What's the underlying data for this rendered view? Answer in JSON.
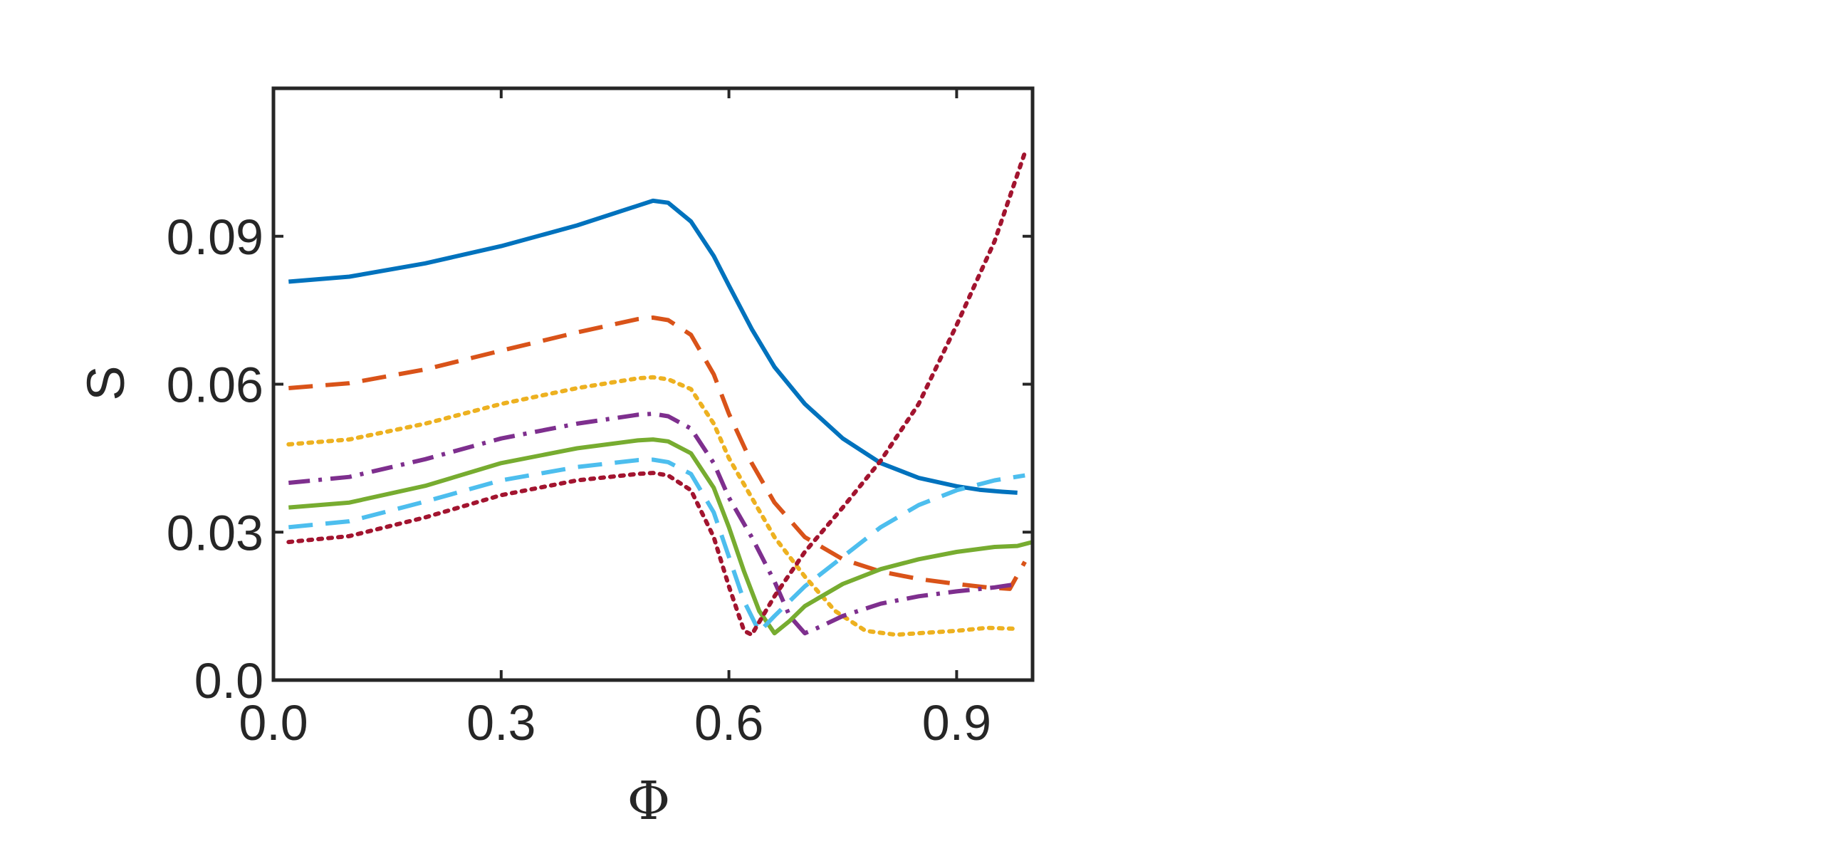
{
  "chart_data": {
    "type": "line",
    "title": "",
    "xlabel": "Φ",
    "ylabel": "S",
    "xlim": [
      0,
      1.0
    ],
    "ylim": [
      0,
      0.12
    ],
    "xticks": [
      0.0,
      0.3,
      0.6,
      0.9
    ],
    "xtick_labels": [
      "0.0",
      "0.3",
      "0.6",
      "0.9"
    ],
    "yticks": [
      0.0,
      0.03,
      0.06,
      0.09
    ],
    "ytick_labels": [
      "0.0",
      "0.03",
      "0.06",
      "0.09"
    ],
    "grid": false,
    "legend": "none",
    "series": [
      {
        "color": "#0072BD",
        "dash": "solid",
        "x": [
          0.02,
          0.1,
          0.2,
          0.3,
          0.4,
          0.48,
          0.5,
          0.52,
          0.55,
          0.58,
          0.6,
          0.63,
          0.66,
          0.7,
          0.75,
          0.8,
          0.85,
          0.9,
          0.93,
          0.96,
          0.98
        ],
        "y": [
          0.0808,
          0.0818,
          0.0845,
          0.088,
          0.0922,
          0.0962,
          0.0972,
          0.0968,
          0.093,
          0.086,
          0.08,
          0.0712,
          0.0635,
          0.056,
          0.049,
          0.044,
          0.041,
          0.0393,
          0.0386,
          0.0382,
          0.038
        ]
      },
      {
        "color": "#D95319",
        "dash": "dashed",
        "x": [
          0.02,
          0.1,
          0.2,
          0.3,
          0.4,
          0.48,
          0.5,
          0.52,
          0.55,
          0.58,
          0.6,
          0.63,
          0.66,
          0.7,
          0.75,
          0.8,
          0.85,
          0.9,
          0.94,
          0.97,
          0.99
        ],
        "y": [
          0.0592,
          0.0602,
          0.063,
          0.0668,
          0.0705,
          0.0732,
          0.0735,
          0.073,
          0.07,
          0.062,
          0.054,
          0.044,
          0.036,
          0.029,
          0.0245,
          0.022,
          0.0205,
          0.0195,
          0.0188,
          0.0185,
          0.024
        ]
      },
      {
        "color": "#EDB120",
        "dash": "dotted",
        "x": [
          0.02,
          0.1,
          0.2,
          0.3,
          0.4,
          0.48,
          0.5,
          0.52,
          0.55,
          0.58,
          0.6,
          0.63,
          0.66,
          0.7,
          0.74,
          0.78,
          0.82,
          0.86,
          0.9,
          0.94,
          0.98
        ],
        "y": [
          0.0478,
          0.0488,
          0.052,
          0.056,
          0.0592,
          0.0612,
          0.0614,
          0.061,
          0.059,
          0.052,
          0.045,
          0.037,
          0.029,
          0.021,
          0.014,
          0.01,
          0.0092,
          0.0096,
          0.01,
          0.0106,
          0.0104
        ]
      },
      {
        "color": "#7E2F8E",
        "dash": "dashdot",
        "x": [
          0.02,
          0.1,
          0.2,
          0.3,
          0.4,
          0.48,
          0.5,
          0.52,
          0.55,
          0.58,
          0.6,
          0.63,
          0.66,
          0.68,
          0.7,
          0.72,
          0.75,
          0.8,
          0.85,
          0.9,
          0.95,
          0.98
        ],
        "y": [
          0.04,
          0.0412,
          0.0448,
          0.049,
          0.052,
          0.0538,
          0.054,
          0.0535,
          0.051,
          0.044,
          0.037,
          0.029,
          0.02,
          0.013,
          0.0095,
          0.0108,
          0.013,
          0.0155,
          0.017,
          0.018,
          0.0188,
          0.0195
        ]
      },
      {
        "color": "#77AC30",
        "dash": "solid",
        "x": [
          0.02,
          0.1,
          0.2,
          0.3,
          0.4,
          0.48,
          0.5,
          0.52,
          0.55,
          0.58,
          0.6,
          0.62,
          0.64,
          0.66,
          0.68,
          0.7,
          0.75,
          0.8,
          0.85,
          0.9,
          0.95,
          0.98,
          1.0
        ],
        "y": [
          0.035,
          0.036,
          0.0394,
          0.044,
          0.047,
          0.0486,
          0.0488,
          0.0484,
          0.046,
          0.039,
          0.031,
          0.022,
          0.014,
          0.0095,
          0.012,
          0.015,
          0.0195,
          0.0225,
          0.0245,
          0.026,
          0.027,
          0.0272,
          0.028
        ]
      },
      {
        "color": "#4DBEEE",
        "dash": "dashed",
        "x": [
          0.02,
          0.1,
          0.2,
          0.3,
          0.4,
          0.48,
          0.5,
          0.52,
          0.55,
          0.58,
          0.6,
          0.62,
          0.64,
          0.66,
          0.7,
          0.75,
          0.8,
          0.85,
          0.9,
          0.95,
          0.99
        ],
        "y": [
          0.031,
          0.0322,
          0.0362,
          0.0405,
          0.0432,
          0.0446,
          0.0447,
          0.0442,
          0.0418,
          0.034,
          0.025,
          0.016,
          0.0098,
          0.013,
          0.019,
          0.025,
          0.031,
          0.0355,
          0.0385,
          0.0405,
          0.0415
        ]
      },
      {
        "color": "#A2142F",
        "dash": "dotted",
        "x": [
          0.02,
          0.1,
          0.2,
          0.3,
          0.4,
          0.48,
          0.5,
          0.52,
          0.55,
          0.58,
          0.6,
          0.62,
          0.63,
          0.66,
          0.7,
          0.75,
          0.8,
          0.85,
          0.9,
          0.95,
          0.99
        ],
        "y": [
          0.028,
          0.0292,
          0.033,
          0.0375,
          0.0405,
          0.0418,
          0.042,
          0.0415,
          0.0385,
          0.029,
          0.019,
          0.01,
          0.0092,
          0.017,
          0.026,
          0.035,
          0.0445,
          0.056,
          0.072,
          0.089,
          0.107
        ]
      }
    ]
  }
}
